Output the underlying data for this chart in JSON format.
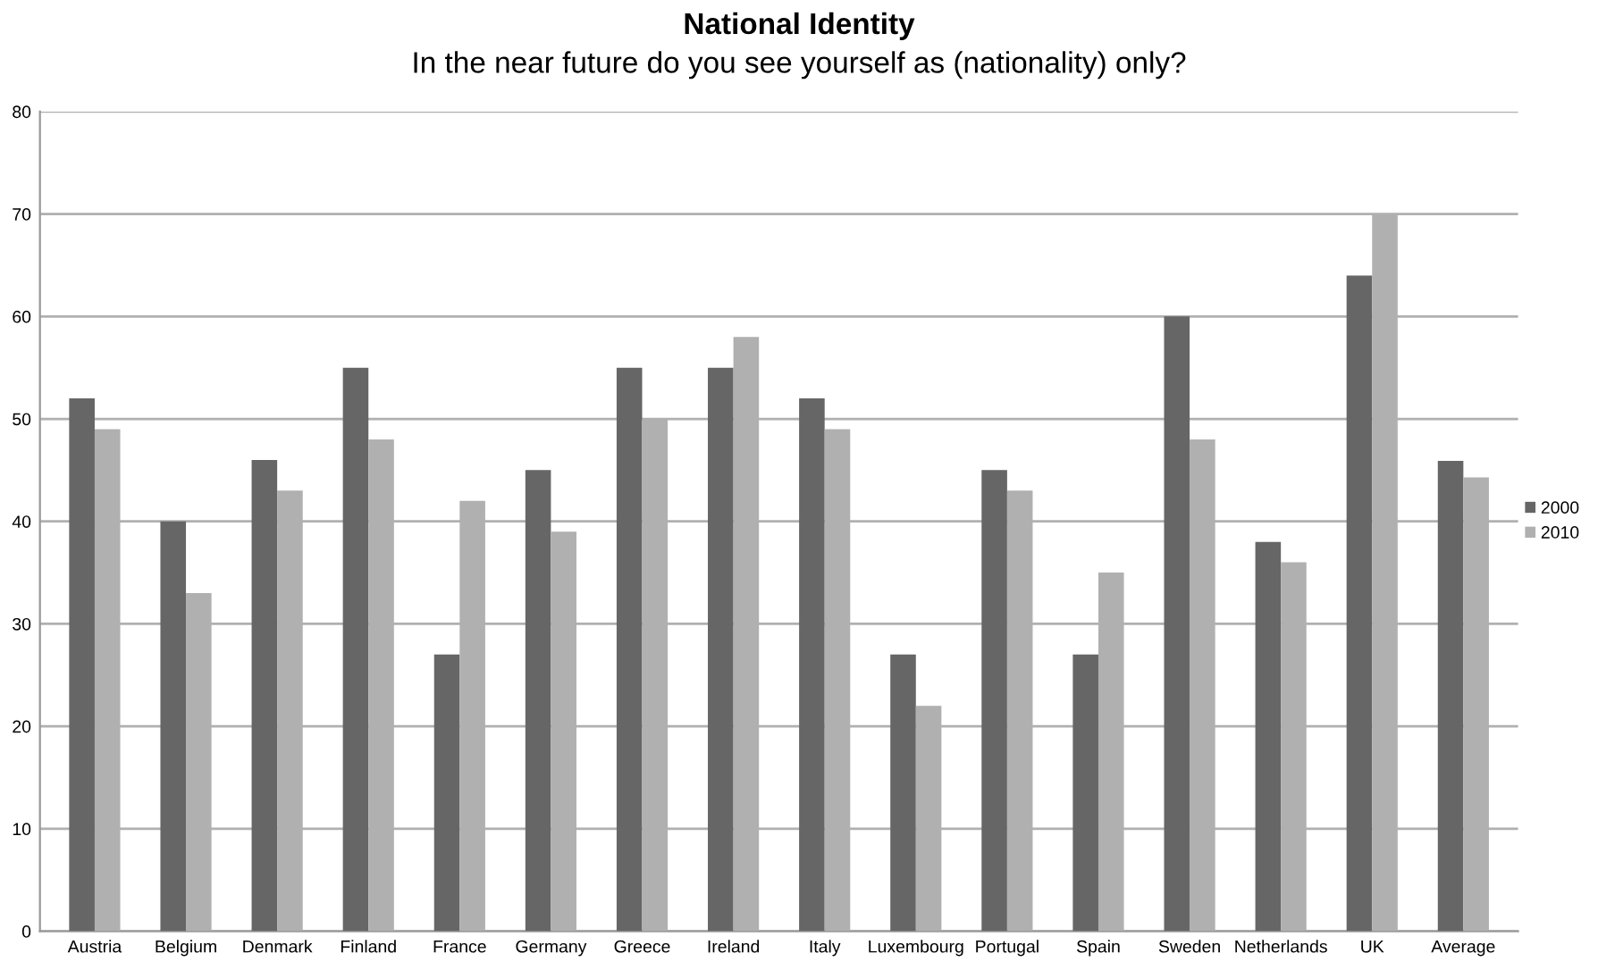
{
  "chart_data": {
    "type": "bar",
    "title": "National Identity",
    "subtitle": "In the near future do you see yourself as (nationality) only?",
    "categories": [
      "Austria",
      "Belgium",
      "Denmark",
      "Finland",
      "France",
      "Germany",
      "Greece",
      "Ireland",
      "Italy",
      "Luxembourg",
      "Portugal",
      "Spain",
      "Sweden",
      "Netherlands",
      "UK",
      "Average"
    ],
    "series": [
      {
        "name": "2000",
        "color": "#666666",
        "values": [
          52,
          40,
          46,
          55,
          27,
          45,
          55,
          55,
          52,
          27,
          45,
          27,
          60,
          38,
          64,
          45.9
        ]
      },
      {
        "name": "2010",
        "color": "#b0b0b0",
        "values": [
          49,
          33,
          43,
          48,
          42,
          39,
          50,
          58,
          49,
          22,
          43,
          35,
          48,
          36,
          70,
          44.3
        ]
      }
    ],
    "ylim": [
      0,
      80
    ],
    "yticks": [
      0,
      10,
      20,
      30,
      40,
      50,
      60,
      70,
      80
    ],
    "grid": "y",
    "legend": "right"
  }
}
